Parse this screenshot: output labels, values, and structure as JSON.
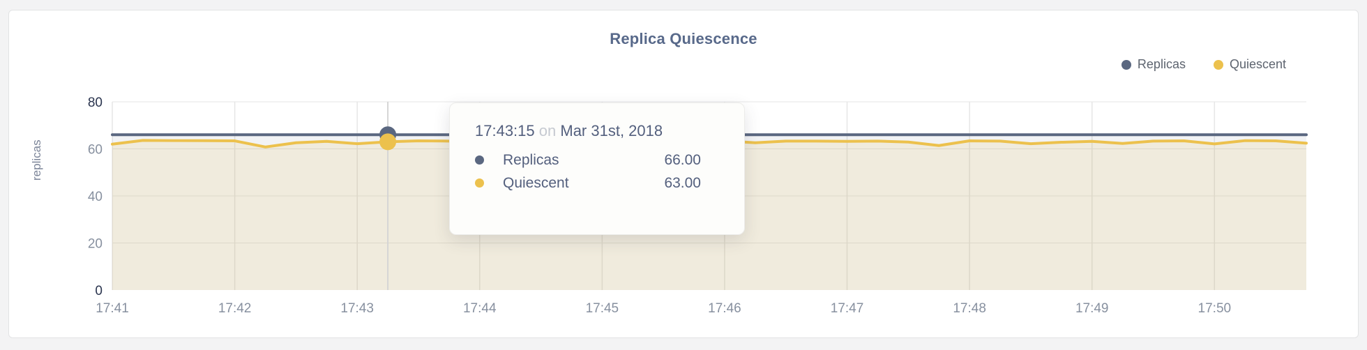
{
  "page_background": "#f3f3f4",
  "card": {
    "background": "#ffffff",
    "border_color": "#e2e3e4"
  },
  "chart_data": {
    "type": "area",
    "title": "Replica Quiescence",
    "title_color": "#58698a",
    "xlabel": "",
    "ylabel": "replicas",
    "ylim": [
      0,
      80
    ],
    "yticks": [
      0,
      20,
      40,
      60,
      80
    ],
    "strong_yticks": [
      0,
      80
    ],
    "x_tick_labels": [
      "17:41",
      "17:42",
      "17:43",
      "17:44",
      "17:45",
      "17:46",
      "17:47",
      "17:48",
      "17:49",
      "17:50"
    ],
    "x_tick_seconds": [
      0,
      60,
      120,
      180,
      240,
      300,
      360,
      420,
      480,
      540
    ],
    "x_range_seconds": [
      0,
      585
    ],
    "x_start_time": "17:41",
    "point_interval_seconds": 15,
    "grid": true,
    "legend_position": "top-right",
    "series": [
      {
        "name": "Replicas",
        "color": "#5a6780",
        "fill": "rgba(90,103,128,0.08)",
        "values": [
          66,
          66,
          66,
          66,
          66,
          66,
          66,
          66,
          66,
          66,
          66,
          66,
          66,
          66,
          66,
          66,
          66,
          66,
          66,
          66,
          66,
          66,
          66,
          66,
          66,
          66,
          66,
          66,
          66,
          66,
          66,
          66,
          66,
          66,
          66,
          66,
          66,
          66,
          66,
          66
        ]
      },
      {
        "name": "Quiescent",
        "color": "#ecc14d",
        "fill": "rgba(236,193,77,0.14)",
        "values": [
          62.0,
          63.6,
          63.5,
          63.5,
          63.4,
          60.8,
          62.6,
          63.2,
          62.2,
          63.0,
          63.4,
          63.3,
          63.5,
          63.4,
          63.5,
          63.3,
          63.4,
          63.5,
          63.4,
          63.5,
          63.4,
          62.6,
          63.3,
          63.3,
          63.2,
          63.3,
          62.9,
          61.4,
          63.4,
          63.3,
          62.2,
          62.8,
          63.2,
          62.3,
          63.3,
          63.4,
          62.1,
          63.5,
          63.4,
          62.4
        ]
      }
    ],
    "highlight": {
      "seconds": 135,
      "time": "17:43:15",
      "replicas_value": 66,
      "quiescent_value": 63
    }
  },
  "axis": {
    "tick_color": "#87909f",
    "strong_tick_color": "#2a344e",
    "grid_color": "#e6e6e6",
    "crosshair_color": "#d5d5d5"
  },
  "tooltip": {
    "time": "17:43:15",
    "connector": "on",
    "date": "Mar 31st, 2018",
    "rows": [
      {
        "label": "Replicas",
        "value": "66.00",
        "color": "#5a6780"
      },
      {
        "label": "Quiescent",
        "value": "63.00",
        "color": "#ecc14d"
      }
    ]
  }
}
